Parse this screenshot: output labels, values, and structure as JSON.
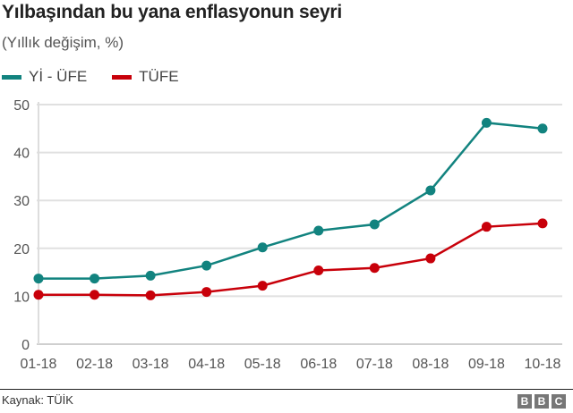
{
  "header": {
    "title": "Yılbaşından bu yana enflasyonun seyri",
    "subtitle": "(Yıllık değişim, %)"
  },
  "legend": [
    {
      "label": "Yİ - ÜFE",
      "color": "#12837f"
    },
    {
      "label": "TÜFE",
      "color": "#c8000a"
    }
  ],
  "footer": {
    "source": "Kaynak: TÜİK",
    "logo": [
      "B",
      "B",
      "C"
    ]
  },
  "chart_data": {
    "type": "line",
    "title": "Yılbaşından bu yana enflasyonun seyri",
    "subtitle": "(Yıllık değişim, %)",
    "xlabel": "",
    "ylabel": "",
    "categories": [
      "01-18",
      "02-18",
      "03-18",
      "04-18",
      "05-18",
      "06-18",
      "07-18",
      "08-18",
      "09-18",
      "10-18"
    ],
    "series": [
      {
        "name": "Yİ - ÜFE",
        "color": "#12837f",
        "values": [
          13.7,
          13.7,
          14.3,
          16.4,
          20.2,
          23.7,
          25.0,
          32.1,
          46.2,
          45.0
        ]
      },
      {
        "name": "TÜFE",
        "color": "#c8000a",
        "values": [
          10.3,
          10.3,
          10.2,
          10.9,
          12.2,
          15.4,
          15.9,
          17.9,
          24.5,
          25.2
        ]
      }
    ],
    "yticks": [
      0,
      10,
      20,
      30,
      40,
      50
    ],
    "ylim": [
      0,
      50
    ],
    "grid": true,
    "legend_position": "top-left",
    "source": "Kaynak: TÜİK"
  }
}
